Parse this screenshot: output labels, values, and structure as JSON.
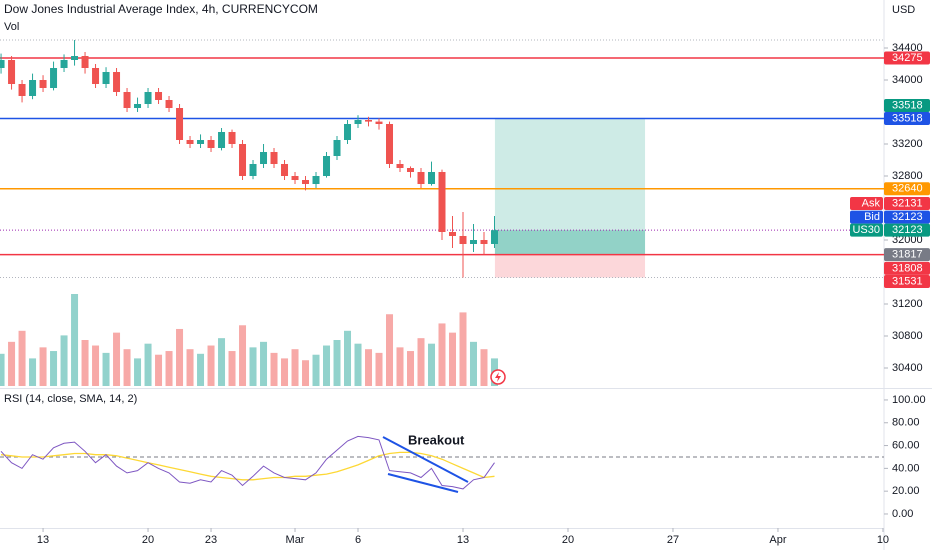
{
  "chart_data": {
    "type": "candlestick",
    "title": "Dow Jones Industrial Average Index, 4h, CURRENCYCOM",
    "volume_label": "Vol",
    "indicator_label": "RSI (14, close, SMA, 14, 2)",
    "currency": "USD",
    "annotation": "Breakout",
    "up_color": "#26a69a",
    "down_color": "#ef5350",
    "grid": false,
    "xlim": [
      -2.05,
      40.05
    ],
    "xticks": [
      {
        "value": 0,
        "label": "13"
      },
      {
        "value": 5,
        "label": "20"
      },
      {
        "value": 8,
        "label": "23"
      },
      {
        "value": 12,
        "label": "Mar"
      },
      {
        "value": 15,
        "label": "6"
      },
      {
        "value": 20,
        "label": "13"
      },
      {
        "value": 25,
        "label": "20"
      },
      {
        "value": 30,
        "label": "27"
      },
      {
        "value": 35,
        "label": "Apr"
      },
      {
        "value": 40,
        "label": "10"
      }
    ],
    "ylim": [
      30150,
      35000
    ],
    "yticks": [
      30400,
      30800,
      31200,
      32000,
      32800,
      33200,
      34000,
      34400
    ],
    "x": [
      -2.0,
      -1.5,
      -1.0,
      -0.5,
      0.0,
      0.5,
      1.0,
      1.5,
      2.0,
      2.5,
      3.0,
      3.5,
      4.0,
      4.5,
      5.0,
      5.5,
      6.0,
      6.5,
      7.0,
      7.5,
      8.0,
      8.5,
      9.0,
      9.5,
      10.0,
      10.5,
      11.0,
      11.5,
      12.0,
      12.5,
      13.0,
      13.5,
      14.0,
      14.5,
      15.0,
      15.5,
      16.0,
      16.5,
      17.0,
      17.5,
      18.0,
      18.5,
      19.0,
      19.5,
      20.0,
      20.5,
      21.0,
      21.5
    ],
    "open": [
      34150,
      34250,
      33950,
      33800,
      34000,
      33900,
      34150,
      34250,
      34300,
      34150,
      33950,
      34100,
      33850,
      33650,
      33700,
      33850,
      33750,
      33650,
      33250,
      33200,
      33250,
      33150,
      33350,
      33200,
      32800,
      32950,
      33100,
      32950,
      32800,
      32750,
      32700,
      32800,
      33050,
      33250,
      33450,
      33500,
      33480,
      33450,
      32950,
      32900,
      32850,
      32700,
      32850,
      32100,
      32050,
      31950,
      32000,
      31950
    ],
    "high": [
      34330,
      34300,
      34000,
      34080,
      34060,
      34230,
      34320,
      34500,
      34350,
      34200,
      34160,
      34150,
      33900,
      33780,
      33900,
      33900,
      33800,
      33700,
      33300,
      33320,
      33300,
      33400,
      33380,
      33250,
      33000,
      33200,
      33150,
      33000,
      32850,
      32800,
      32850,
      33100,
      33300,
      33500,
      33560,
      33540,
      33520,
      33480,
      33000,
      32920,
      32900,
      32980,
      32880,
      32300,
      32350,
      32200,
      32100,
      32300
    ],
    "low": [
      34080,
      33880,
      33720,
      33760,
      33850,
      33870,
      34100,
      34180,
      34080,
      33900,
      33900,
      33800,
      33600,
      33600,
      33650,
      33700,
      33600,
      33200,
      33150,
      33150,
      33100,
      33120,
      33150,
      32750,
      32760,
      32900,
      32900,
      32750,
      32700,
      32620,
      32650,
      32780,
      33000,
      33200,
      33400,
      33420,
      33380,
      32900,
      32850,
      32780,
      32650,
      32680,
      32000,
      31900,
      31531,
      31850,
      31820,
      31900
    ],
    "close": [
      34250,
      33950,
      33800,
      34000,
      33900,
      34150,
      34250,
      34300,
      34150,
      33950,
      34100,
      33850,
      33650,
      33700,
      33850,
      33750,
      33650,
      33250,
      33200,
      33250,
      33150,
      33350,
      33200,
      32800,
      32950,
      33100,
      32950,
      32800,
      32750,
      32700,
      32800,
      33050,
      33250,
      33450,
      33500,
      33480,
      33450,
      32950,
      32900,
      32850,
      32700,
      32850,
      32100,
      32050,
      31950,
      32000,
      31950,
      32123
    ],
    "volume": [
      35,
      48,
      60,
      30,
      42,
      38,
      55,
      100,
      50,
      44,
      36,
      58,
      40,
      30,
      46,
      34,
      38,
      62,
      40,
      35,
      44,
      52,
      38,
      66,
      42,
      48,
      36,
      30,
      40,
      28,
      34,
      44,
      50,
      60,
      46,
      40,
      36,
      78,
      42,
      38,
      52,
      46,
      68,
      58,
      80,
      48,
      40,
      30
    ],
    "rsi": {
      "color": "#7e57c2",
      "values": [
        55,
        45,
        40,
        52,
        48,
        58,
        62,
        63,
        55,
        45,
        52,
        42,
        36,
        38,
        45,
        40,
        36,
        28,
        27,
        30,
        28,
        38,
        34,
        25,
        33,
        42,
        36,
        32,
        31,
        30,
        36,
        48,
        56,
        64,
        68,
        67,
        65,
        38,
        37,
        36,
        32,
        40,
        25,
        24,
        22,
        30,
        32,
        45
      ]
    },
    "rsi_sma": {
      "color": "#fdd835",
      "values": [
        52,
        51,
        50,
        50,
        50,
        51,
        52,
        53,
        53,
        52,
        52,
        51,
        49,
        47,
        45,
        43,
        41,
        39,
        37,
        35,
        33,
        32,
        31,
        30,
        30,
        31,
        32,
        32,
        33,
        33,
        34,
        35,
        37,
        40,
        43,
        47,
        51,
        53,
        54,
        54,
        53,
        51,
        48,
        44,
        40,
        36,
        32,
        33
      ]
    },
    "rsi_ylim": [
      -12.3,
      109.6
    ],
    "rsi_yticks": [
      {
        "value": 100,
        "label": "100.00"
      },
      {
        "value": 80,
        "label": "80.00"
      },
      {
        "value": 60,
        "label": "60.00"
      },
      {
        "value": 40,
        "label": "40.00"
      },
      {
        "value": 20,
        "label": "20.00"
      },
      {
        "value": 0,
        "label": "0.00"
      }
    ],
    "rsi_midline": 50,
    "levels": [
      {
        "value": 34500,
        "color": "#b2b5be",
        "style": "dotted"
      },
      {
        "value": 34275,
        "color": "#f23645",
        "style": "solid"
      },
      {
        "value": 33518,
        "color": "#1e53e5",
        "style": "solid"
      },
      {
        "value": 32640,
        "color": "#ff9800",
        "style": "solid"
      },
      {
        "value": 32123,
        "color": "#9c27b0",
        "style": "dotted"
      },
      {
        "value": 31817,
        "color": "#f23645",
        "style": "solid"
      },
      {
        "value": 31531,
        "color": "#b2b5be",
        "style": "dotted"
      }
    ],
    "position": {
      "x": [
        21.52,
        28.67
      ],
      "target": 33518,
      "entry": 31817,
      "stop": 31531,
      "current": 32123
    },
    "badges": [
      {
        "value": 34275,
        "color": "#f23645"
      },
      {
        "value": 33518,
        "color": "#089981"
      },
      {
        "value": 33518,
        "color": "#1e53e5"
      },
      {
        "value": 32640,
        "color": "#ff9800"
      },
      {
        "name": "Ask",
        "value": 32131,
        "color": "#f23645"
      },
      {
        "name": "Bid",
        "value": 32123,
        "color": "#1e53e5"
      },
      {
        "name": "US30",
        "value": 32123,
        "color": "#089981"
      },
      {
        "value": 31817,
        "color": "#787b86"
      },
      {
        "value": 31808,
        "color": "#f23645"
      },
      {
        "value": 31531,
        "color": "#f23645"
      }
    ]
  }
}
